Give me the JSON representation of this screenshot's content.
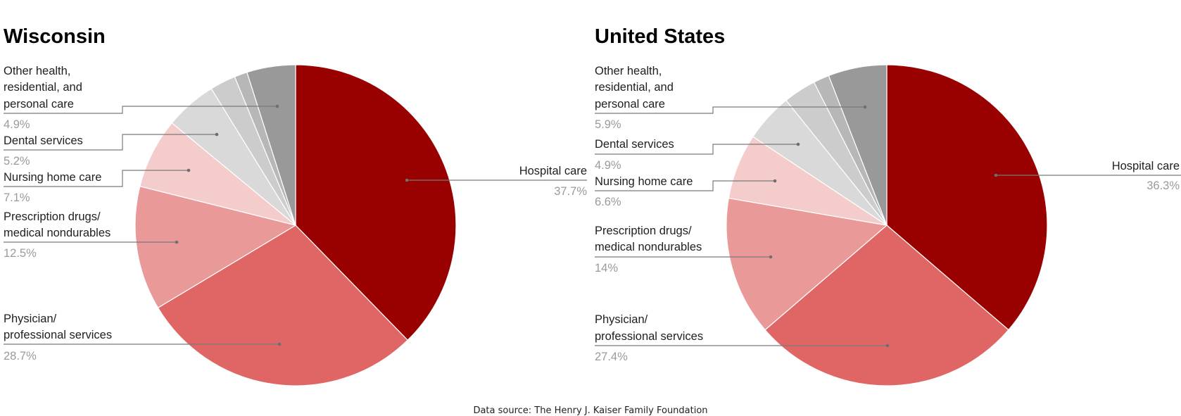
{
  "chart_data": [
    {
      "type": "pie",
      "title": "Wisconsin",
      "start": "top, clockwise",
      "slices": [
        {
          "name": "Hospital care",
          "value": 37.7,
          "label": "37.7%",
          "color": "#990000",
          "labeled": true
        },
        {
          "name": "Physician/ professional services",
          "value": 28.7,
          "label": "28.7%",
          "color": "#e06666",
          "labeled": true
        },
        {
          "name": "Prescription drugs/ medical nondurables",
          "value": 12.5,
          "label": "12.5%",
          "color": "#ea9999",
          "labeled": true
        },
        {
          "name": "Nursing home care",
          "value": 7.1,
          "label": "7.1%",
          "color": "#f4cccc",
          "labeled": true
        },
        {
          "name": "Dental services",
          "value": 5.2,
          "label": "5.2%",
          "color": "#d9d9d9",
          "labeled": true
        },
        {
          "name": "Unlabeled category A",
          "value": 2.6,
          "label": "",
          "color": "#cccccc",
          "labeled": false
        },
        {
          "name": "Unlabeled category B",
          "value": 1.3,
          "label": "",
          "color": "#b7b7b7",
          "labeled": false
        },
        {
          "name": "Other health, residential, and personal care",
          "value": 4.9,
          "label": "4.9%",
          "color": "#999999",
          "labeled": true
        }
      ]
    },
    {
      "type": "pie",
      "title": "United States",
      "start": "top, clockwise",
      "slices": [
        {
          "name": "Hospital care",
          "value": 36.3,
          "label": "36.3%",
          "color": "#990000",
          "labeled": true
        },
        {
          "name": "Physician/ professional services",
          "value": 27.4,
          "label": "27.4%",
          "color": "#e06666",
          "labeled": true
        },
        {
          "name": "Prescription drugs/ medical nondurables",
          "value": 14.0,
          "label": "14%",
          "color": "#ea9999",
          "labeled": true
        },
        {
          "name": "Nursing home care",
          "value": 6.6,
          "label": "6.6%",
          "color": "#f4cccc",
          "labeled": true
        },
        {
          "name": "Dental services",
          "value": 4.9,
          "label": "4.9%",
          "color": "#d9d9d9",
          "labeled": true
        },
        {
          "name": "Unlabeled category A",
          "value": 3.3,
          "label": "",
          "color": "#cccccc",
          "labeled": false
        },
        {
          "name": "Unlabeled category B",
          "value": 1.6,
          "label": "",
          "color": "#b7b7b7",
          "labeled": false
        },
        {
          "name": "Other health, residential, and personal care",
          "value": 5.9,
          "label": "5.9%",
          "color": "#999999",
          "labeled": true
        }
      ]
    }
  ],
  "wi": {
    "title": "Wisconsin",
    "hospital": {
      "label": "Hospital care",
      "pct": "37.7%"
    },
    "physician": {
      "line1": "Physician/",
      "line2": "professional services",
      "pct": "28.7%"
    },
    "rx": {
      "line1": "Prescription drugs/",
      "line2": "medical nondurables",
      "pct": "12.5%"
    },
    "nursing": {
      "line1": "Nursing home care",
      "pct": "7.1%"
    },
    "dental": {
      "line1": "Dental services",
      "pct": "5.2%"
    },
    "other": {
      "line1": "Other health,",
      "line2": "residential, and",
      "line3": "personal care",
      "pct": "4.9%"
    }
  },
  "us": {
    "title": "United States",
    "hospital": {
      "label": "Hospital care",
      "pct": "36.3%"
    },
    "physician": {
      "line1": "Physician/",
      "line2": "professional services",
      "pct": "27.4%"
    },
    "rx": {
      "line1": "Prescription drugs/",
      "line2": "medical nondurables",
      "pct": "14%"
    },
    "nursing": {
      "line1": "Nursing home care",
      "pct": "6.6%"
    },
    "dental": {
      "line1": "Dental services",
      "pct": "4.9%"
    },
    "other": {
      "line1": "Other health,",
      "line2": "residential, and",
      "line3": "personal care",
      "pct": "5.9%"
    }
  },
  "source": "Data source: The Henry J. Kaiser Family Foundation"
}
